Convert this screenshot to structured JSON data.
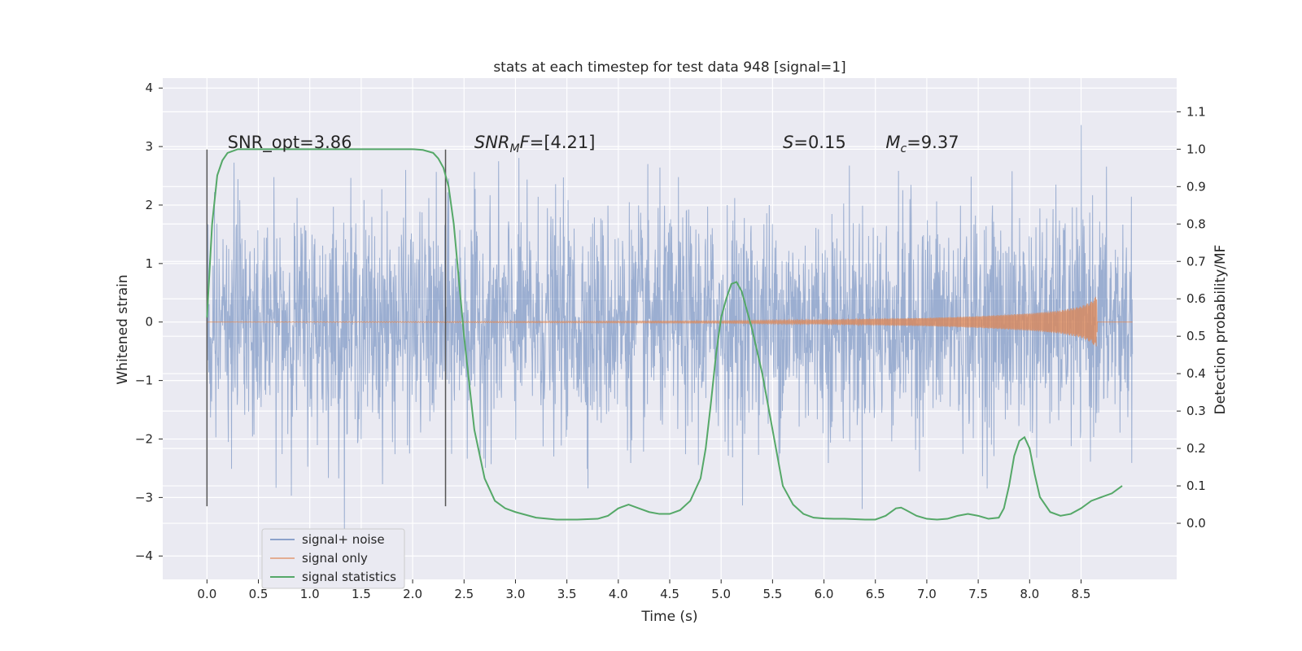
{
  "chart_data": {
    "type": "line",
    "title": "stats at each timestep for test data 948 [signal=1]",
    "xlabel": "Time (s)",
    "ylabel_left": "Whitened strain",
    "ylabel_right": "Detection probability/MF",
    "xlim": [
      -0.43,
      9.43
    ],
    "ylim_left": [
      -4.4,
      4.17
    ],
    "ylim_right": [
      -0.15,
      1.19
    ],
    "x_ticks": [
      0.0,
      0.5,
      1.0,
      1.5,
      2.0,
      2.5,
      3.0,
      3.5,
      4.0,
      4.5,
      5.0,
      5.5,
      6.0,
      6.5,
      7.0,
      7.5,
      8.0,
      8.5
    ],
    "x_tick_labels": [
      "0.0",
      "0.5",
      "1.0",
      "1.5",
      "2.0",
      "2.5",
      "3.0",
      "3.5",
      "4.0",
      "4.5",
      "5.0",
      "5.5",
      "6.0",
      "6.5",
      "7.0",
      "7.5",
      "8.0",
      "8.5"
    ],
    "y_left_ticks": [
      4,
      3,
      2,
      1,
      0,
      -1,
      -2,
      -3,
      -4
    ],
    "y_left_tick_labels": [
      "4",
      "3",
      "2",
      "1",
      "0",
      "−1",
      "−2",
      "−3",
      "−4"
    ],
    "y_right_ticks": [
      1.1,
      1.0,
      0.9,
      0.8,
      0.7,
      0.6,
      0.5,
      0.4,
      0.3,
      0.2,
      0.1,
      0.0
    ],
    "y_right_tick_labels": [
      "1.1",
      "1.0",
      "0.9",
      "0.8",
      "0.7",
      "0.6",
      "0.5",
      "0.4",
      "0.3",
      "0.2",
      "0.1",
      "0.0"
    ],
    "grid": true,
    "legend_position": "lower-left",
    "series": [
      {
        "name": "signal+ noise",
        "color": "#4c72b0",
        "axis": "left",
        "time_range": [
          0.0,
          9.0
        ],
        "typical_amplitude": [
          -1.8,
          1.8
        ],
        "extreme_range": [
          -4.0,
          3.8
        ]
      },
      {
        "name": "signal only",
        "color": "#dd8452",
        "axis": "left",
        "description_points": {
          "x": [
            0.0,
            5.0,
            6.0,
            7.0,
            7.5,
            8.0,
            8.3,
            8.5,
            8.6,
            8.65,
            8.66,
            9.0
          ],
          "envelope": [
            0.0,
            0.02,
            0.04,
            0.07,
            0.1,
            0.15,
            0.2,
            0.27,
            0.35,
            0.45,
            0.0,
            0.0
          ]
        }
      },
      {
        "name": "signal statistics",
        "color": "#55a868",
        "axis": "right",
        "x": [
          0.0,
          0.05,
          0.1,
          0.15,
          0.2,
          0.3,
          0.5,
          1.0,
          1.5,
          2.0,
          2.1,
          2.2,
          2.25,
          2.3,
          2.35,
          2.4,
          2.5,
          2.6,
          2.7,
          2.8,
          2.9,
          3.0,
          3.2,
          3.4,
          3.6,
          3.8,
          3.9,
          4.0,
          4.1,
          4.2,
          4.3,
          4.4,
          4.5,
          4.6,
          4.7,
          4.8,
          4.85,
          4.9,
          4.95,
          5.0,
          5.05,
          5.1,
          5.15,
          5.2,
          5.3,
          5.4,
          5.5,
          5.6,
          5.7,
          5.8,
          5.9,
          6.0,
          6.1,
          6.2,
          6.3,
          6.4,
          6.5,
          6.6,
          6.7,
          6.75,
          6.8,
          6.9,
          7.0,
          7.1,
          7.2,
          7.3,
          7.4,
          7.5,
          7.6,
          7.7,
          7.75,
          7.8,
          7.85,
          7.9,
          7.95,
          8.0,
          8.05,
          8.1,
          8.2,
          8.3,
          8.4,
          8.5,
          8.6,
          8.7,
          8.8,
          8.9
        ],
        "y": [
          0.55,
          0.8,
          0.93,
          0.97,
          0.99,
          1.0,
          1.0,
          1.0,
          1.0,
          1.0,
          0.998,
          0.99,
          0.975,
          0.95,
          0.9,
          0.8,
          0.5,
          0.25,
          0.12,
          0.06,
          0.04,
          0.03,
          0.015,
          0.01,
          0.01,
          0.012,
          0.02,
          0.04,
          0.05,
          0.04,
          0.03,
          0.025,
          0.025,
          0.035,
          0.06,
          0.12,
          0.2,
          0.32,
          0.45,
          0.55,
          0.6,
          0.64,
          0.645,
          0.62,
          0.52,
          0.4,
          0.25,
          0.1,
          0.05,
          0.025,
          0.015,
          0.013,
          0.012,
          0.012,
          0.011,
          0.01,
          0.01,
          0.02,
          0.04,
          0.042,
          0.035,
          0.02,
          0.012,
          0.01,
          0.012,
          0.02,
          0.025,
          0.02,
          0.012,
          0.015,
          0.04,
          0.1,
          0.18,
          0.22,
          0.23,
          0.2,
          0.13,
          0.07,
          0.03,
          0.02,
          0.025,
          0.04,
          0.06,
          0.07,
          0.08,
          0.1
        ]
      }
    ],
    "vertical_lines": [
      {
        "x": 0.0,
        "y_range": [
          -3.15,
          2.95
        ],
        "color": "#555555"
      },
      {
        "x": 2.32,
        "y_range": [
          -3.15,
          2.95
        ],
        "color": "#555555"
      }
    ],
    "annotations": [
      {
        "text": "SNR_opt=3.86",
        "x": 0.2,
        "y": 3.0
      },
      {
        "text": "SNR_MF=[4.21]",
        "x": 2.6,
        "y": 3.0
      },
      {
        "text": "S=0.15",
        "x": 5.6,
        "y": 3.0
      },
      {
        "text": "M_c=9.37",
        "x": 6.6,
        "y": 3.0
      }
    ]
  }
}
